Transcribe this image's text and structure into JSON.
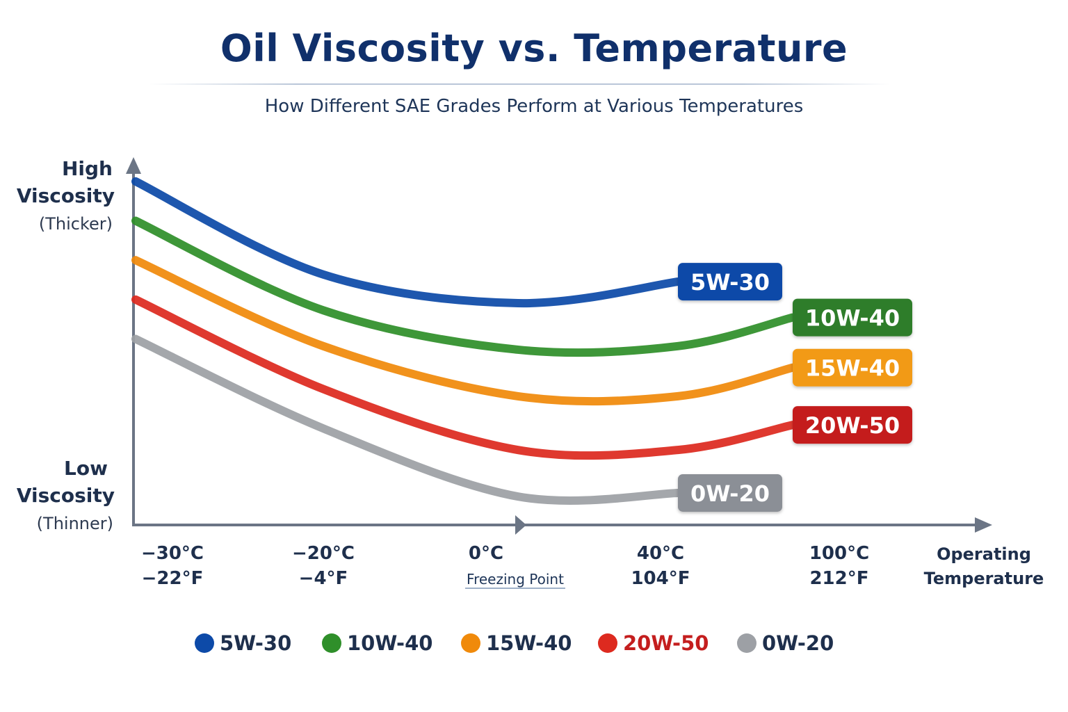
{
  "title": "Oil Viscosity vs. Temperature",
  "subtitle": "How Different SAE Grades Perform at Various Temperatures",
  "chart_data": {
    "type": "line",
    "y_axis": {
      "high_label_line1": "High",
      "high_label_line2": "Viscosity",
      "high_label_line3": "(Thicker)",
      "low_label_line1": "Low",
      "low_label_line2": "Viscosity",
      "low_label_line3": "(Thinner)"
    },
    "x_axis": {
      "label_line1": "Operating",
      "label_line2": "Temperature",
      "ticks": [
        {
          "c": "−30°C",
          "f": "−22°F"
        },
        {
          "c": "−20°C",
          "f": "−4°F"
        },
        {
          "c": "0°C",
          "f": "Freezing Point"
        },
        {
          "c": "40°C",
          "f": "104°F"
        },
        {
          "c": "100°C",
          "f": "212°F"
        }
      ]
    },
    "grid": false,
    "legend_position": "bottom",
    "series": [
      {
        "name": "5W-30",
        "color": "#0d4aa8",
        "label_color": "#0d4aa8",
        "values": [
          [
            -30,
            0.94
          ],
          [
            -20,
            0.68
          ],
          [
            0,
            0.6
          ],
          [
            40,
            0.66
          ]
        ]
      },
      {
        "name": "10W-40",
        "color": "#2f8f2a",
        "label_color": "#2f7d2a",
        "values": [
          [
            -30,
            0.83
          ],
          [
            -20,
            0.58
          ],
          [
            0,
            0.47
          ],
          [
            40,
            0.48
          ],
          [
            100,
            0.56
          ]
        ]
      },
      {
        "name": "15W-40",
        "color": "#f08a0b",
        "label_color": "#f29a14",
        "values": [
          [
            -30,
            0.72
          ],
          [
            -20,
            0.48
          ],
          [
            0,
            0.34
          ],
          [
            40,
            0.34
          ],
          [
            100,
            0.42
          ]
        ]
      },
      {
        "name": "20W-50",
        "color": "#dd2a1f",
        "label_color": "#c41e1e",
        "values": [
          [
            -30,
            0.61
          ],
          [
            -20,
            0.36
          ],
          [
            0,
            0.19
          ],
          [
            40,
            0.19
          ],
          [
            100,
            0.26
          ]
        ]
      },
      {
        "name": "0W-20",
        "color": "#9da0a5",
        "label_color": "#8b8f96",
        "values": [
          [
            -30,
            0.5
          ],
          [
            -20,
            0.25
          ],
          [
            0,
            0.06
          ],
          [
            40,
            0.07
          ]
        ]
      }
    ]
  }
}
